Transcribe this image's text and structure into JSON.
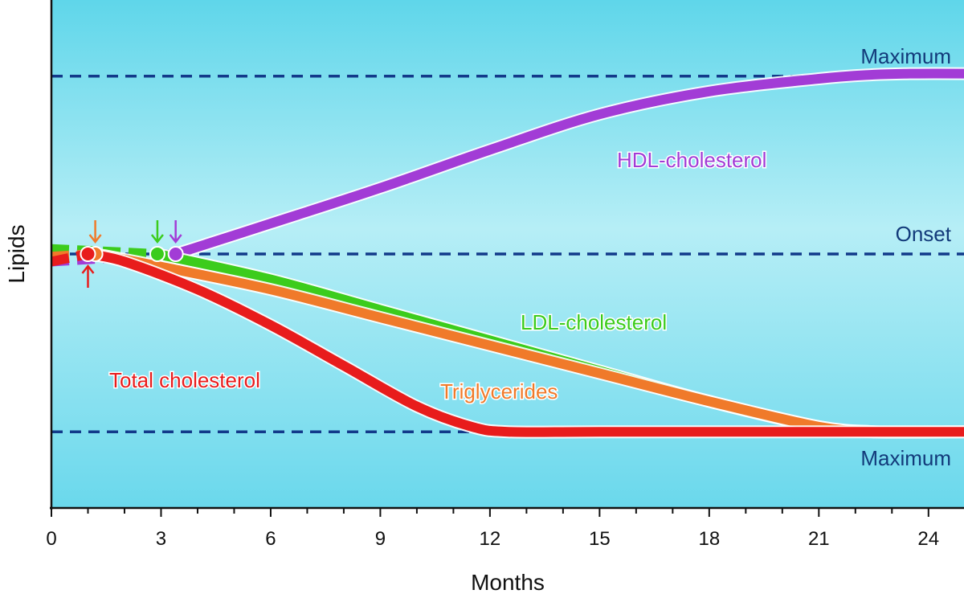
{
  "chart_data": {
    "type": "line",
    "xlabel": "Months",
    "ylabel": "Lipids",
    "xlim": [
      0,
      25
    ],
    "xticks": [
      0,
      3,
      6,
      9,
      12,
      15,
      18,
      21,
      24
    ],
    "minor_tick_step": 1,
    "ylim": [
      0,
      1
    ],
    "reference_lines": [
      {
        "label": "Maximum",
        "y": 0.85,
        "label_position": "above-right"
      },
      {
        "label": "Onset",
        "y": 0.5,
        "label_position": "above-right"
      },
      {
        "label": "Maximum",
        "y": 0.15,
        "label_position": "below-right"
      }
    ],
    "series": [
      {
        "name": "HDL-cholesterol",
        "color": "#a23cd6",
        "onset_x": 3.4,
        "onset_marker": "down-arrow",
        "x": [
          0,
          3.4,
          6,
          9,
          12,
          15,
          18,
          21,
          22.5,
          23.5,
          25
        ],
        "y": [
          0.485,
          0.5,
          0.56,
          0.63,
          0.705,
          0.775,
          0.82,
          0.845,
          0.853,
          0.855,
          0.855
        ]
      },
      {
        "name": "LDL-cholesterol",
        "color": "#3ccc1c",
        "onset_x": 2.9,
        "onset_marker": "down-arrow",
        "x": [
          0,
          2.9,
          6,
          9,
          12,
          15,
          18,
          21,
          22.5,
          25
        ],
        "y": [
          0.51,
          0.5,
          0.45,
          0.39,
          0.33,
          0.27,
          0.21,
          0.16,
          0.15,
          0.15
        ]
      },
      {
        "name": "Triglycerides",
        "color": "#f07a2a",
        "onset_x": 1.2,
        "onset_marker": "down-arrow",
        "x": [
          0,
          1.2,
          3,
          6,
          9,
          12,
          15,
          18,
          21,
          22.5
        ],
        "y": [
          0.495,
          0.5,
          0.475,
          0.43,
          0.375,
          0.32,
          0.265,
          0.21,
          0.16,
          0.15
        ]
      },
      {
        "name": "Total cholesterol",
        "color": "#e81c1c",
        "onset_x": 1.0,
        "onset_marker": "up-arrow",
        "x": [
          0,
          1.0,
          2,
          4,
          6,
          8,
          10,
          11.5,
          12.5,
          15,
          20,
          25
        ],
        "y": [
          0.485,
          0.5,
          0.485,
          0.43,
          0.36,
          0.28,
          0.2,
          0.16,
          0.15,
          0.15,
          0.15,
          0.15
        ]
      }
    ],
    "series_label_positions": {
      "HDL-cholesterol": "right of curve, upper middle",
      "LDL-cholesterol": "below curve, middle right",
      "Triglycerides": "below curve, middle",
      "Total cholesterol": "left of curve, lower"
    },
    "background": "light cyan gradient",
    "grid": false,
    "legend": "none (inline labels)"
  }
}
